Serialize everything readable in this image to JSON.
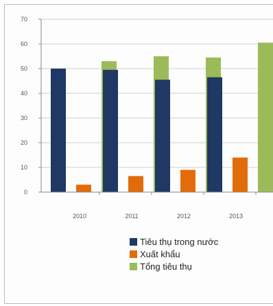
{
  "chart_data": {
    "type": "bar",
    "categories": [
      "2010",
      "2011",
      "2012",
      "2013"
    ],
    "series": [
      {
        "name": "Tiêu thụ trong nước",
        "values": [
          50,
          49.5,
          45.5,
          46.5
        ],
        "color": "#1f3864"
      },
      {
        "name": "Xuất khẩu",
        "values": [
          3,
          6.5,
          9,
          14
        ],
        "color": "#e36c0a"
      },
      {
        "name": "Tổng tiêu thụ",
        "values": [
          53,
          55,
          54.5,
          60.5
        ],
        "color": "#9bbb59"
      }
    ],
    "ylim": [
      0,
      70
    ],
    "yticks": [
      "0",
      "10",
      "20",
      "30",
      "40",
      "50",
      "60",
      "70"
    ],
    "grid": true,
    "legend_position": "bottom-right"
  }
}
